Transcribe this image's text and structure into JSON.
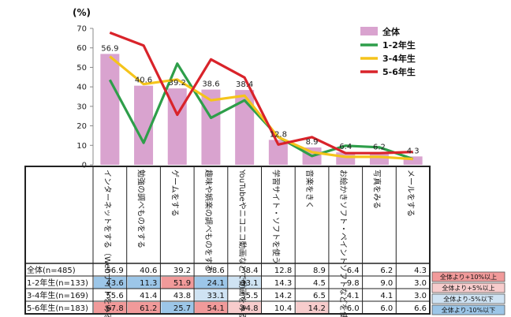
{
  "chart_data": {
    "type": "bar",
    "unit": "(%)",
    "ylim": [
      0,
      70
    ],
    "yticks": [
      0,
      10,
      20,
      30,
      40,
      50,
      60,
      70
    ],
    "categories": [
      "インターネットをする（Webサイトをみる）",
      "勉強の調べものをする",
      "ゲームをする",
      "趣味や娯楽の調べものをする",
      "YouTubeやニコニコ動画などで動画をみる",
      "学習サイト・ソフトを使う",
      "音楽をきく",
      "お絵かきソフト・ペイントソフトなどを使う",
      "写真をみる",
      "メールをする"
    ],
    "series": [
      {
        "name": "全体",
        "kind": "bar",
        "color": "#d9a3cf",
        "values": [
          56.9,
          40.6,
          39.2,
          38.6,
          38.4,
          12.8,
          8.9,
          6.4,
          6.2,
          4.3
        ]
      },
      {
        "name": "1-2年生",
        "kind": "line",
        "color": "#2e9e4a",
        "values": [
          43.6,
          11.3,
          51.9,
          24.1,
          33.1,
          14.3,
          4.5,
          9.8,
          9.0,
          3.0
        ]
      },
      {
        "name": "3-4年生",
        "kind": "line",
        "color": "#f5c41b",
        "values": [
          55.6,
          41.4,
          43.8,
          33.1,
          35.5,
          14.2,
          6.5,
          4.1,
          4.1,
          3.0
        ]
      },
      {
        "name": "5-6年生",
        "kind": "line",
        "color": "#d9232a",
        "values": [
          67.8,
          61.2,
          25.7,
          54.1,
          44.8,
          10.4,
          14.2,
          6.0,
          6.0,
          6.6
        ]
      }
    ],
    "data_labels": [
      "56.9",
      "40.6",
      "39.2",
      "38.6",
      "38.4",
      "12.8",
      "8.9",
      "6.4",
      "6.2",
      "4.3"
    ],
    "legend_position": "top-right",
    "table": {
      "rows": [
        {
          "label": "全体(n=485)",
          "values": [
            "56.9",
            "40.6",
            "39.2",
            "38.6",
            "38.4",
            "12.8",
            "8.9",
            "6.4",
            "6.2",
            "4.3"
          ],
          "highlight": [
            "",
            "",
            "",
            "",
            "",
            "",
            "",
            "",
            "",
            ""
          ]
        },
        {
          "label": "1-2年生(n=133)",
          "values": [
            "43.6",
            "11.3",
            "51.9",
            "24.1",
            "33.1",
            "14.3",
            "4.5",
            "9.8",
            "9.0",
            "3.0"
          ],
          "highlight": [
            "blue",
            "blue",
            "red",
            "blue",
            "lightblue",
            "",
            "",
            "",
            "",
            ""
          ]
        },
        {
          "label": "3-4年生(n=169)",
          "values": [
            "55.6",
            "41.4",
            "43.8",
            "33.1",
            "35.5",
            "14.2",
            "6.5",
            "4.1",
            "4.1",
            "3.0"
          ],
          "highlight": [
            "",
            "",
            "",
            "lightblue",
            "",
            "",
            "",
            "",
            "",
            ""
          ]
        },
        {
          "label": "5-6年生(n=183)",
          "values": [
            "67.8",
            "61.2",
            "25.7",
            "54.1",
            "44.8",
            "10.4",
            "14.2",
            "6.0",
            "6.0",
            "6.6"
          ],
          "highlight": [
            "red",
            "red",
            "blue",
            "red",
            "pink",
            "",
            "pink",
            "",
            "",
            ""
          ]
        }
      ]
    },
    "highlight_key": [
      {
        "label": "全体より+10%以上",
        "color": "#f19a9a"
      },
      {
        "label": "全体より+5%以上",
        "color": "#f7cccc"
      },
      {
        "label": "全体より-5%以下",
        "color": "#cfe3f3"
      },
      {
        "label": "全体より-10%以下",
        "color": "#9cc6e8"
      }
    ],
    "highlight_colors": {
      "red": "#f19a9a",
      "pink": "#f7cccc",
      "lightblue": "#cfe3f3",
      "blue": "#9cc6e8"
    }
  }
}
